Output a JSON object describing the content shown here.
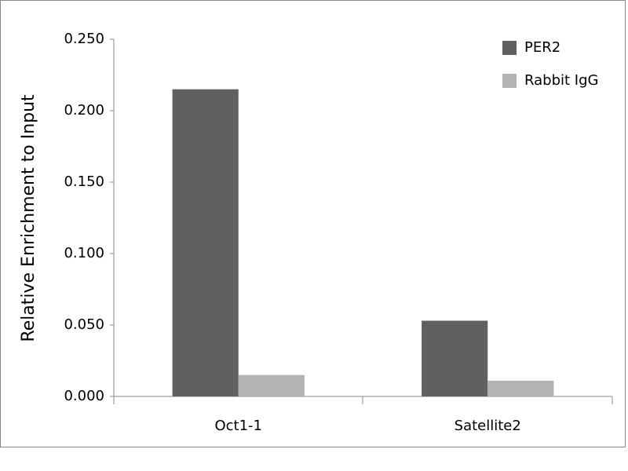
{
  "chart_data": {
    "type": "bar",
    "y_label": "Relative Enrichment to Input",
    "categories": [
      "Oct1-1",
      "Satellite2"
    ],
    "series": [
      {
        "name": "PER2",
        "color": "#606060",
        "values": [
          0.215,
          0.053
        ]
      },
      {
        "name": "Rabbit IgG",
        "color": "#b3b3b3",
        "values": [
          0.015,
          0.011
        ]
      }
    ],
    "ylim": [
      0,
      0.25
    ],
    "yticks": [
      {
        "value": 0,
        "label": "0.000"
      },
      {
        "value": 0.05,
        "label": "0.050"
      },
      {
        "value": 0.1,
        "label": "0.100"
      },
      {
        "value": 0.15,
        "label": "0.150"
      },
      {
        "value": 0.2,
        "label": "0.200"
      },
      {
        "value": 0.25,
        "label": "0.250"
      }
    ],
    "grid": false,
    "legend": "upper right"
  }
}
